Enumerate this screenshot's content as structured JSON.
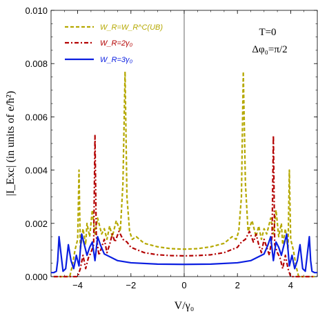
{
  "chart_data": {
    "type": "line",
    "xlabel": "V/γ₀",
    "ylabel": "|I_Exc| (in units of e/ħ²)",
    "xlim": [
      -5,
      5
    ],
    "ylim": [
      0,
      0.01
    ],
    "x_ticks": [
      -4,
      -2,
      0,
      2,
      4
    ],
    "y_ticks": [
      0.0,
      0.002,
      0.004,
      0.006,
      0.008,
      0.01
    ],
    "x_tick_labels": [
      "−4",
      "−2",
      "0",
      "2",
      "4"
    ],
    "y_tick_labels": [
      "0.000",
      "0.002",
      "0.004",
      "0.006",
      "0.008",
      "0.010"
    ],
    "grid": false,
    "legend_position": "top-left",
    "annotations": [
      "T=0",
      "Δφ₀=π/2"
    ],
    "series": [
      {
        "name": "W_R=W_R^C(UB)",
        "color": "#b5a800",
        "style": "dashed",
        "points": [
          [
            -4.9,
            0
          ],
          [
            -4.3,
            0
          ],
          [
            -4.2,
            0.0004
          ],
          [
            -4.1,
            0.001
          ],
          [
            -4.0,
            0.0014
          ],
          [
            -3.95,
            0.004
          ],
          [
            -3.9,
            0.001
          ],
          [
            -3.8,
            0.0018
          ],
          [
            -3.7,
            0.0012
          ],
          [
            -3.65,
            0.002
          ],
          [
            -3.55,
            0.0015
          ],
          [
            -3.45,
            0.0025
          ],
          [
            -3.35,
            0.0016
          ],
          [
            -3.25,
            0.0022
          ],
          [
            -3.1,
            0.0016
          ],
          [
            -3.0,
            0.0018
          ],
          [
            -2.9,
            0.0014
          ],
          [
            -2.8,
            0.0019
          ],
          [
            -2.7,
            0.0015
          ],
          [
            -2.55,
            0.0021
          ],
          [
            -2.4,
            0.0017
          ],
          [
            -2.3,
            0.0035
          ],
          [
            -2.22,
            0.0077
          ],
          [
            -2.15,
            0.003
          ],
          [
            -2.05,
            0.0017
          ],
          [
            -1.95,
            0.0014
          ],
          [
            -1.8,
            0.0015
          ],
          [
            -1.5,
            0.00125
          ],
          [
            -1.0,
            0.00112
          ],
          [
            -0.5,
            0.00105
          ],
          [
            0,
            0.00103
          ],
          [
            0.5,
            0.00105
          ],
          [
            1.0,
            0.00112
          ],
          [
            1.5,
            0.00125
          ],
          [
            1.8,
            0.0015
          ],
          [
            1.95,
            0.0014
          ],
          [
            2.05,
            0.0017
          ],
          [
            2.15,
            0.003
          ],
          [
            2.22,
            0.0077
          ],
          [
            2.3,
            0.0035
          ],
          [
            2.4,
            0.0017
          ],
          [
            2.55,
            0.0021
          ],
          [
            2.7,
            0.0015
          ],
          [
            2.8,
            0.0019
          ],
          [
            2.9,
            0.0014
          ],
          [
            3.0,
            0.0018
          ],
          [
            3.1,
            0.0016
          ],
          [
            3.25,
            0.0022
          ],
          [
            3.35,
            0.0016
          ],
          [
            3.45,
            0.0025
          ],
          [
            3.55,
            0.0015
          ],
          [
            3.65,
            0.002
          ],
          [
            3.7,
            0.0012
          ],
          [
            3.8,
            0.0018
          ],
          [
            3.9,
            0.001
          ],
          [
            3.95,
            0.004
          ],
          [
            4.0,
            0.0014
          ],
          [
            4.1,
            0.001
          ],
          [
            4.2,
            0.0004
          ],
          [
            4.3,
            0
          ],
          [
            4.9,
            0
          ]
        ]
      },
      {
        "name": "W_R=2γ₀",
        "color": "#b30000",
        "style": "dashdot",
        "points": [
          [
            -4.9,
            0
          ],
          [
            -4.0,
            0
          ],
          [
            -3.9,
            0.0003
          ],
          [
            -3.8,
            0.0008
          ],
          [
            -3.7,
            0.0003
          ],
          [
            -3.6,
            0.0007
          ],
          [
            -3.5,
            0.0009
          ],
          [
            -3.4,
            0.0012
          ],
          [
            -3.35,
            0.0053
          ],
          [
            -3.3,
            0.0015
          ],
          [
            -3.2,
            0.0008
          ],
          [
            -3.1,
            0.0011
          ],
          [
            -3.0,
            0.0014
          ],
          [
            -2.9,
            0.0009
          ],
          [
            -2.8,
            0.0012
          ],
          [
            -2.7,
            0.0016
          ],
          [
            -2.6,
            0.0013
          ],
          [
            -2.45,
            0.0017
          ],
          [
            -2.3,
            0.0014
          ],
          [
            -2.15,
            0.0013
          ],
          [
            -2.0,
            0.0011
          ],
          [
            -1.5,
            0.0009
          ],
          [
            -1.0,
            0.00082
          ],
          [
            -0.5,
            0.00079
          ],
          [
            0,
            0.00078
          ],
          [
            0.5,
            0.00079
          ],
          [
            1.0,
            0.00082
          ],
          [
            1.5,
            0.0009
          ],
          [
            2.0,
            0.0011
          ],
          [
            2.15,
            0.0013
          ],
          [
            2.3,
            0.0014
          ],
          [
            2.45,
            0.0017
          ],
          [
            2.6,
            0.0013
          ],
          [
            2.7,
            0.0016
          ],
          [
            2.8,
            0.0012
          ],
          [
            2.9,
            0.0009
          ],
          [
            3.0,
            0.0014
          ],
          [
            3.1,
            0.0011
          ],
          [
            3.2,
            0.0008
          ],
          [
            3.3,
            0.0015
          ],
          [
            3.35,
            0.0053
          ],
          [
            3.4,
            0.0012
          ],
          [
            3.5,
            0.0009
          ],
          [
            3.6,
            0.0007
          ],
          [
            3.7,
            0.0003
          ],
          [
            3.8,
            0.0008
          ],
          [
            3.9,
            0.0003
          ],
          [
            4.0,
            0
          ],
          [
            4.9,
            0
          ]
        ]
      },
      {
        "name": "W_R=3γ₀",
        "color": "#0a1ee0",
        "style": "solid",
        "points": [
          [
            -5.0,
            0.00015
          ],
          [
            -4.9,
            0.00015
          ],
          [
            -4.8,
            0.0002
          ],
          [
            -4.75,
            0.0006
          ],
          [
            -4.7,
            0.0015
          ],
          [
            -4.62,
            0.0008
          ],
          [
            -4.55,
            0.0002
          ],
          [
            -4.45,
            0.0003
          ],
          [
            -4.35,
            0.0012
          ],
          [
            -4.25,
            0.0006
          ],
          [
            -4.15,
            0.0003
          ],
          [
            -4.05,
            0.0008
          ],
          [
            -3.95,
            0.0004
          ],
          [
            -3.85,
            0.0016
          ],
          [
            -3.75,
            0.0012
          ],
          [
            -3.65,
            0.0008
          ],
          [
            -3.55,
            0.0011
          ],
          [
            -3.45,
            0.0013
          ],
          [
            -3.35,
            0.0006
          ],
          [
            -3.25,
            0.0015
          ],
          [
            -3.15,
            0.0012
          ],
          [
            -3.0,
            0.00085
          ],
          [
            -2.5,
            0.0006
          ],
          [
            -2.0,
            0.00052
          ],
          [
            -1.0,
            0.00047
          ],
          [
            0,
            0.00046
          ],
          [
            1.0,
            0.00047
          ],
          [
            2.0,
            0.00052
          ],
          [
            2.5,
            0.0006
          ],
          [
            3.0,
            0.00085
          ],
          [
            3.15,
            0.0012
          ],
          [
            3.25,
            0.0015
          ],
          [
            3.35,
            0.0006
          ],
          [
            3.45,
            0.0013
          ],
          [
            3.55,
            0.0011
          ],
          [
            3.65,
            0.0008
          ],
          [
            3.75,
            0.0012
          ],
          [
            3.85,
            0.0016
          ],
          [
            3.95,
            0.0004
          ],
          [
            4.05,
            0.0008
          ],
          [
            4.15,
            0.0003
          ],
          [
            4.25,
            0.0006
          ],
          [
            4.35,
            0.0012
          ],
          [
            4.45,
            0.0003
          ],
          [
            4.55,
            0.0002
          ],
          [
            4.62,
            0.0008
          ],
          [
            4.7,
            0.0015
          ],
          [
            4.75,
            0.0006
          ],
          [
            4.8,
            0.0002
          ],
          [
            4.9,
            0.00015
          ],
          [
            5.0,
            0.00015
          ]
        ]
      }
    ]
  }
}
